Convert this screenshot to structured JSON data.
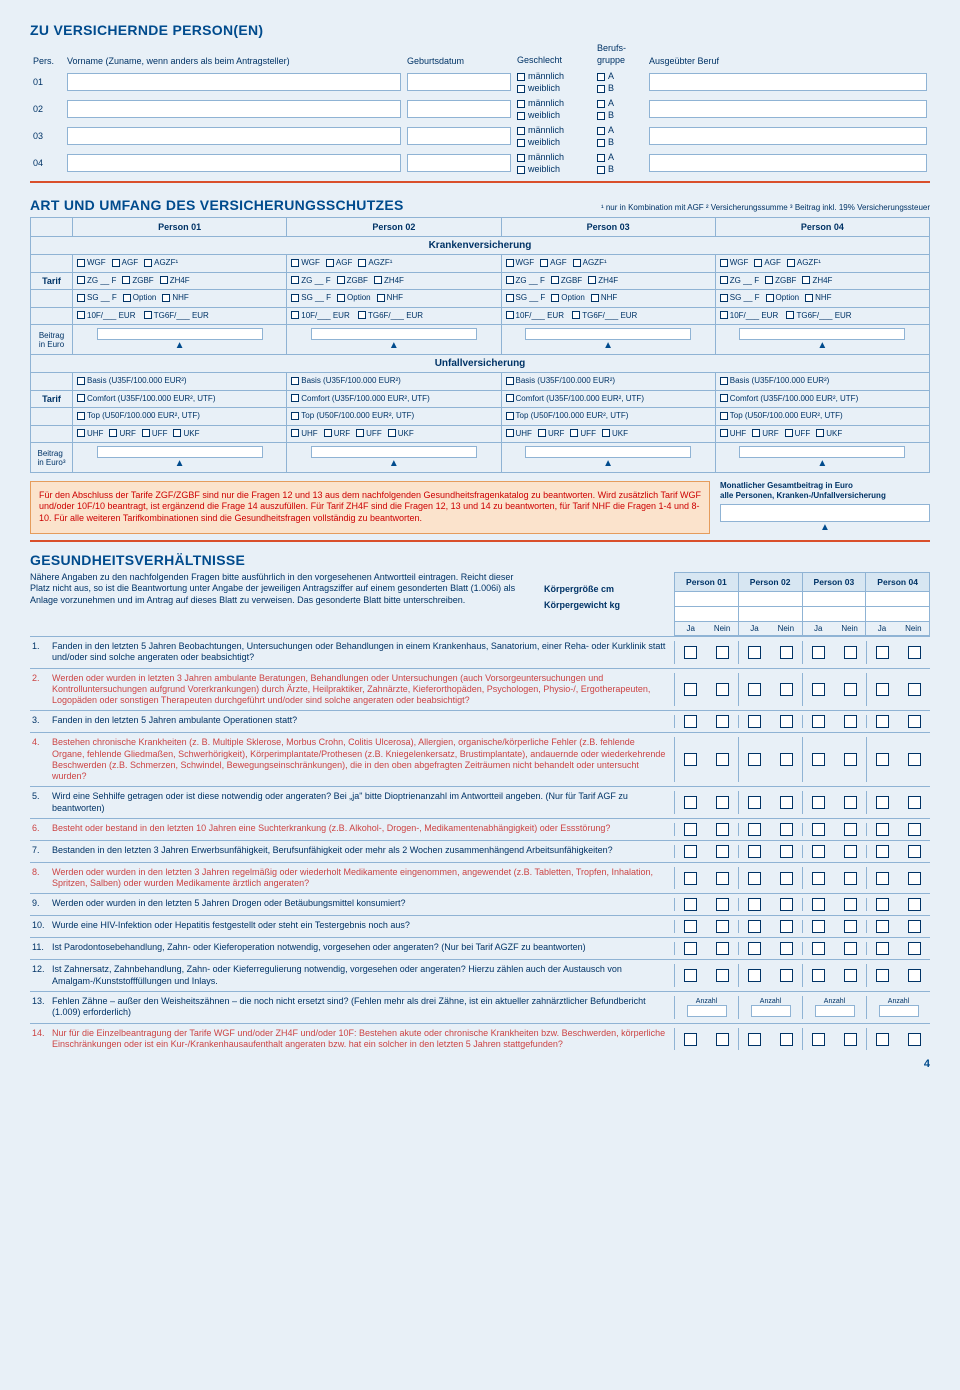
{
  "sections": {
    "persons_title": "ZU VERSICHERNDE PERSON(EN)",
    "coverage_title": "ART UND UMFANG DES VERSICHERUNGSSCHUTZES",
    "health_title": "GESUNDHEITSVERHÄLTNISSE"
  },
  "persons_header": {
    "pers": "Pers.",
    "name": "Vorname (Zuname, wenn anders als beim Antragsteller)",
    "birth": "Geburtsdatum",
    "sex": "Geschlecht",
    "group": "Berufs-\ngruppe",
    "job": "Ausgeübter Beruf",
    "male": "männlich",
    "female": "weiblich",
    "a": "A",
    "b": "B"
  },
  "person_nums": [
    "01",
    "02",
    "03",
    "04"
  ],
  "coverage_notes": "¹ nur in Kombination mit AGF   ² Versicherungssumme   ³ Beitrag inkl. 19% Versicherungssteuer",
  "person_cols": [
    "Person 01",
    "Person 02",
    "Person 03",
    "Person 04"
  ],
  "kranken": {
    "title": "Krankenversicherung",
    "row1": [
      "WGF",
      "AGF",
      "AGZF¹"
    ],
    "row2": [
      "ZG __ F",
      "ZGBF",
      "ZH4F"
    ],
    "row3": [
      "SG __ F",
      "Option",
      "NHF"
    ],
    "row4a": "10F/___ EUR",
    "row4b": "TG6F/___ EUR",
    "tarif": "Tarif",
    "beitrag": "Beitrag\nin Euro"
  },
  "unfall": {
    "title": "Unfallversicherung",
    "basis": "Basis (U35F/100.000 EUR²)",
    "comfort": "Comfort (U35F/100.000 EUR², UTF)",
    "top": "Top (U50F/100.000 EUR², UTF)",
    "row4": [
      "UHF",
      "URF",
      "UFF",
      "UKF"
    ],
    "beitrag": "Beitrag\nin Euro³"
  },
  "red_note": "Für den Abschluss der Tarife ZGF/ZGBF sind nur die Fragen 12 und 13 aus dem nachfolgenden Gesundheitsfragenkatalog zu beantworten. Wird zusätzlich Tarif WGF und/oder 10F/10 beantragt, ist ergänzend die Frage 14 auszufüllen. Für Tarif ZH4F sind die Fragen 12, 13 und 14 zu beantworten, für Tarif NHF die Fragen 1-4 und 8-10. Für alle weiteren Tarifkombinationen sind die Gesundheitsfragen vollständig zu beantworten.",
  "total_label": "Monatlicher Gesamtbeitrag in Euro\nalle Personen, Kranken-/Unfallversicherung",
  "health_intro": "Nähere Angaben zu den nachfolgenden Fragen bitte ausführlich in den vorgesehenen Antwortteil eintragen. Reicht dieser Platz nicht aus, so ist die Beantwortung unter Angabe der jeweiligen Antragsziffer auf einem gesonderten Blatt (1.006i) als Anlage vorzunehmen und im Antrag auf dieses Blatt zu verweisen. Das gesonderte Blatt bitte unterschreiben.",
  "height": "Körpergröße cm",
  "weight": "Körpergewicht kg",
  "ja": "Ja",
  "nein": "Nein",
  "anzahl": "Anzahl",
  "questions": [
    {
      "n": "1.",
      "t": "Fanden in den letzten 5 Jahren Beobachtungen, Untersuchungen oder Behandlungen in einem Krankenhaus, Sanatorium, einer Reha- oder Kurklinik statt und/oder sind solche angeraten oder beabsichtigt?",
      "red": false
    },
    {
      "n": "2.",
      "t": "Werden oder wurden in letzten 3 Jahren ambulante Beratungen, Behandlungen oder Untersuchungen (auch Vorsorgeuntersuchungen und Kontrolluntersuchungen aufgrund Vorerkrankungen) durch Ärzte, Heilpraktiker, Zahnärzte, Kieferorthopäden, Psychologen, Physio-/, Ergotherapeuten, Logopäden oder sonstigen Therapeuten durchgeführt und/oder sind solche angeraten oder beabsichtigt?",
      "red": true
    },
    {
      "n": "3.",
      "t": "Fanden in den letzten 5 Jahren ambulante Operationen statt?",
      "red": false
    },
    {
      "n": "4.",
      "t": "Bestehen chronische Krankheiten (z. B. Multiple Sklerose, Morbus Crohn, Colitis Ulcerosa), Allergien, organische/körperliche Fehler (z.B. fehlende Organe, fehlende Gliedmaßen, Schwerhörigkeit), Körperimplantate/Prothesen (z.B. Kniegelenkersatz, Brustimplantate), andauernde oder wiederkehrende Beschwerden (z.B. Schmerzen, Schwindel, Bewegungseinschränkungen), die in den oben abgefragten Zeiträumen nicht behandelt oder untersucht wurden?",
      "red": true
    },
    {
      "n": "5.",
      "t": "Wird eine Sehhilfe getragen oder ist diese notwendig oder angeraten? Bei „ja\" bitte Dioptrienanzahl im Antwortteil angeben. (Nur für Tarif AGF zu beantworten)",
      "red": false
    },
    {
      "n": "6.",
      "t": "Besteht oder bestand in den letzten 10 Jahren eine Suchterkrankung (z.B. Alkohol-, Drogen-, Medikamentenabhängigkeit) oder Essstörung?",
      "red": true
    },
    {
      "n": "7.",
      "t": "Bestanden in den letzten 3 Jahren Erwerbsunfähigkeit, Berufsunfähigkeit oder mehr als 2 Wochen zusammenhängend Arbeitsunfähigkeiten?",
      "red": false
    },
    {
      "n": "8.",
      "t": "Werden oder wurden in den letzten 3 Jahren regelmäßig oder wiederholt Medikamente eingenommen, angewendet (z.B. Tabletten, Tropfen, Inhalation, Spritzen, Salben) oder wurden Medikamente ärztlich angeraten?",
      "red": true
    },
    {
      "n": "9.",
      "t": "Werden oder wurden in den letzten 5 Jahren Drogen oder Betäubungsmittel konsumiert?",
      "red": false
    },
    {
      "n": "10.",
      "t": "Wurde eine HIV-Infektion oder Hepatitis festgestellt oder steht ein Testergebnis noch aus?",
      "red": false
    },
    {
      "n": "11.",
      "t": "Ist Parodontosebehandlung, Zahn- oder Kieferoperation notwendig, vorgesehen oder angeraten? (Nur bei Tarif AGZF zu beantworten)",
      "red": false
    },
    {
      "n": "12.",
      "t": "Ist Zahnersatz, Zahnbehandlung, Zahn- oder Kieferregulierung notwendig, vorgesehen oder angeraten? Hierzu zählen auch der Austausch von Amalgam-/Kunststofffüllungen und Inlays.",
      "red": false
    },
    {
      "n": "13.",
      "t": "Fehlen Zähne – außer den Weisheitszähnen – die noch nicht ersetzt sind? (Fehlen mehr als drei Zähne, ist ein aktueller zahnärztlicher Befundbericht (1.009) erforderlich)",
      "red": false,
      "anz": true
    },
    {
      "n": "14.",
      "t": "Nur für die Einzelbeantragung der Tarife WGF und/oder ZH4F und/oder 10F: Bestehen akute oder chronische Krankheiten bzw. Beschwerden, körperliche Einschränkungen oder ist ein Kur-/Krankenhausaufenthalt angeraten bzw. hat ein solcher in den letzten 5 Jahren stattgefunden?",
      "red": true
    }
  ],
  "page_num": "4"
}
